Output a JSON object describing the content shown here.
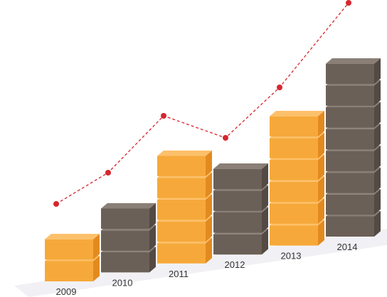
{
  "chart_data": {
    "type": "bar",
    "categories": [
      "2009",
      "2010",
      "2011",
      "2012",
      "2013",
      "2014"
    ],
    "series": [
      {
        "values": [
          2,
          3,
          5,
          4,
          6,
          8
        ]
      }
    ],
    "bar_colors": [
      "#f6a93a",
      "#6b6057",
      "#f6a93a",
      "#6b6057",
      "#f6a93a",
      "#6b6057"
    ],
    "trend_line": {
      "color": "#d6262e",
      "style": "dashed",
      "marker": "circle"
    },
    "axes_visible": false,
    "grid": false,
    "legend": "none"
  },
  "colors": {
    "orange_front": "#f6a93a",
    "orange_top": "#fdc06a",
    "orange_side": "#e38a1f",
    "gray_front": "#6b6057",
    "gray_top": "#8a7f76",
    "gray_side": "#544a43",
    "trend": "#d6262e",
    "floor": "#e6e6ec"
  }
}
